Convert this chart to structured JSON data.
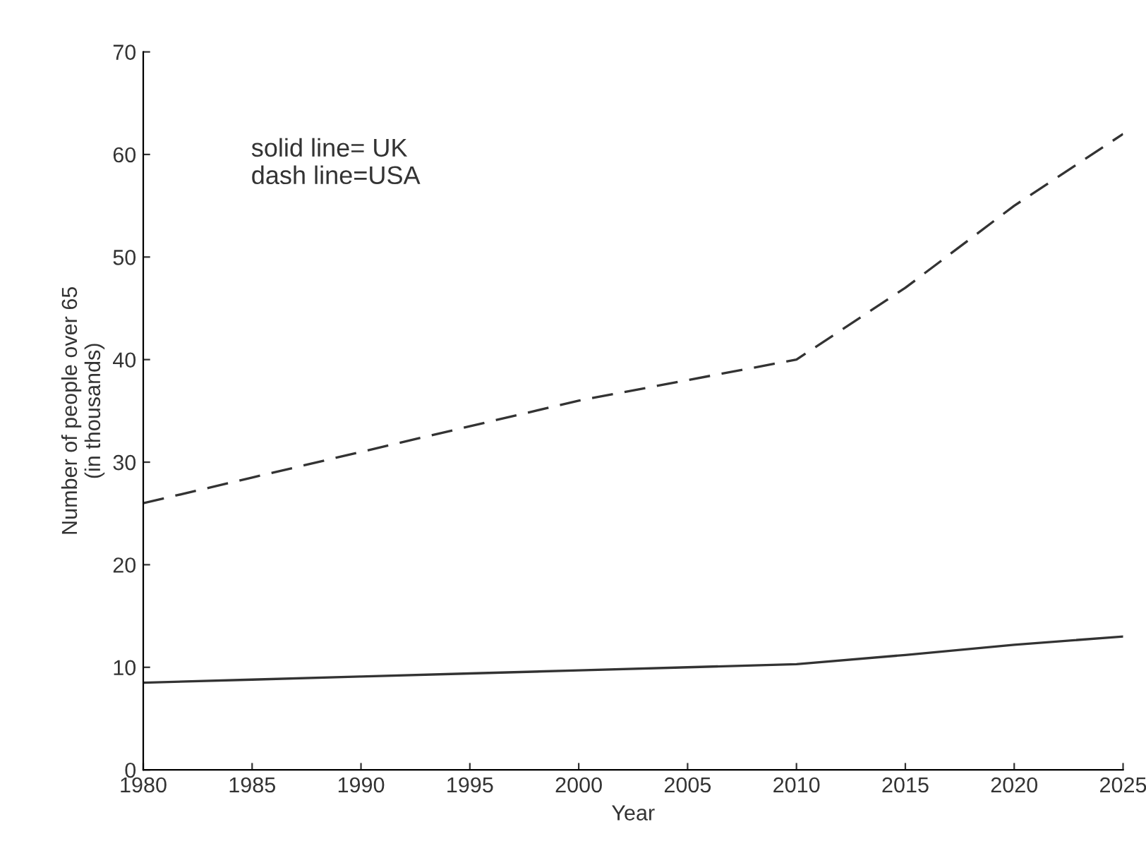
{
  "chart_data": {
    "type": "line",
    "xlabel": "Year",
    "ylabel": "Number of people over 65\n(in thousands)",
    "annotations": [
      "solid line= UK\ndash line=USA"
    ],
    "x": [
      1980,
      1985,
      1990,
      1995,
      2000,
      2005,
      2010,
      2015,
      2020,
      2025
    ],
    "series": [
      {
        "color": "#333333",
        "line_style": "solid",
        "values": [
          8.5,
          8.8,
          9.1,
          9.4,
          9.7,
          10.0,
          10.3,
          11.2,
          12.2,
          13.0
        ]
      },
      {
        "color": "#333333",
        "line_style": "dashed",
        "values": [
          26,
          28.5,
          31,
          33.5,
          36,
          38,
          40,
          47,
          55,
          62
        ]
      }
    ],
    "xlim": [
      1980,
      2025
    ],
    "xticks": [
      1980,
      1985,
      1990,
      1995,
      2000,
      2005,
      2010,
      2015,
      2020,
      2025
    ],
    "ylim": [
      0,
      70
    ],
    "yticks": [
      0,
      10,
      20,
      30,
      40,
      50,
      60,
      70
    ],
    "grid": false,
    "legend": false,
    "marker": "none"
  }
}
